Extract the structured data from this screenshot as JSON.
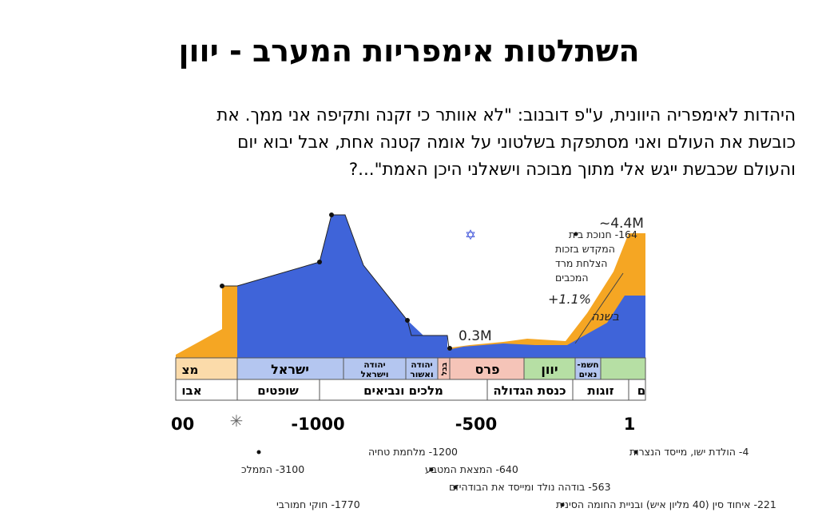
{
  "slide": {
    "title": "השתלטות אימפריות המערב - יוון",
    "body_lines": [
      "היהדות לאימפריה היוונית, ע\"פ דובנוב: \"לא אוותר כי זקנה ותקיפה אני ממך. את",
      "כובשת את העולם ואני מסתפקת בשלטוני על אומה קטנה אחת, אבל יבוא יום",
      "והעולם שכבשת ייגש אלי מתוך מבוכה וישאלני היכן האמת\"...?"
    ]
  },
  "figure": {
    "labels": {
      "peak": "~4.4M",
      "low": "0.3M",
      "growth_rate": "+1.1%",
      "growth_unit": "בשנה"
    },
    "hanukkah_note": [
      "164- חנוכת בית",
      "המקדש בזכות",
      "הצלחת מרד",
      "המכבים"
    ],
    "periods_row1": [
      "מצ",
      "ישראל",
      "יהודה",
      "וישראל",
      "יהודה",
      "ואשור",
      "בבל",
      "פרס",
      "יוון",
      "חשמ-",
      "נאים"
    ],
    "periods_row2": [
      "אבו",
      "שופטים",
      "מלכים ונביאים",
      "כנסת הגדולה",
      "זוגות",
      "ם"
    ],
    "axis_ticks": [
      "00",
      "-1000",
      "-500",
      "1"
    ],
    "events": [
      "1200- מלחמת טחיה",
      "4- הולדת ישו, מייסד הנצרות",
      "3100- הממלכ",
      "640- המצאת המטבע",
      "563- בודהה נולד ומייסד את הבודהיזם",
      "1770- חוקי חמורבי",
      "221- איחוד סין (40 מליון איש) ובניית החומה הסינית"
    ],
    "colors": {
      "blue_area": "#3f64d9",
      "orange_area": "#f5a623",
      "cell_beige": "#fbdbaa",
      "cell_blue": "#b4c6f0",
      "cell_pink": "#f5c4b8",
      "cell_green": "#b6dfa4"
    }
  }
}
